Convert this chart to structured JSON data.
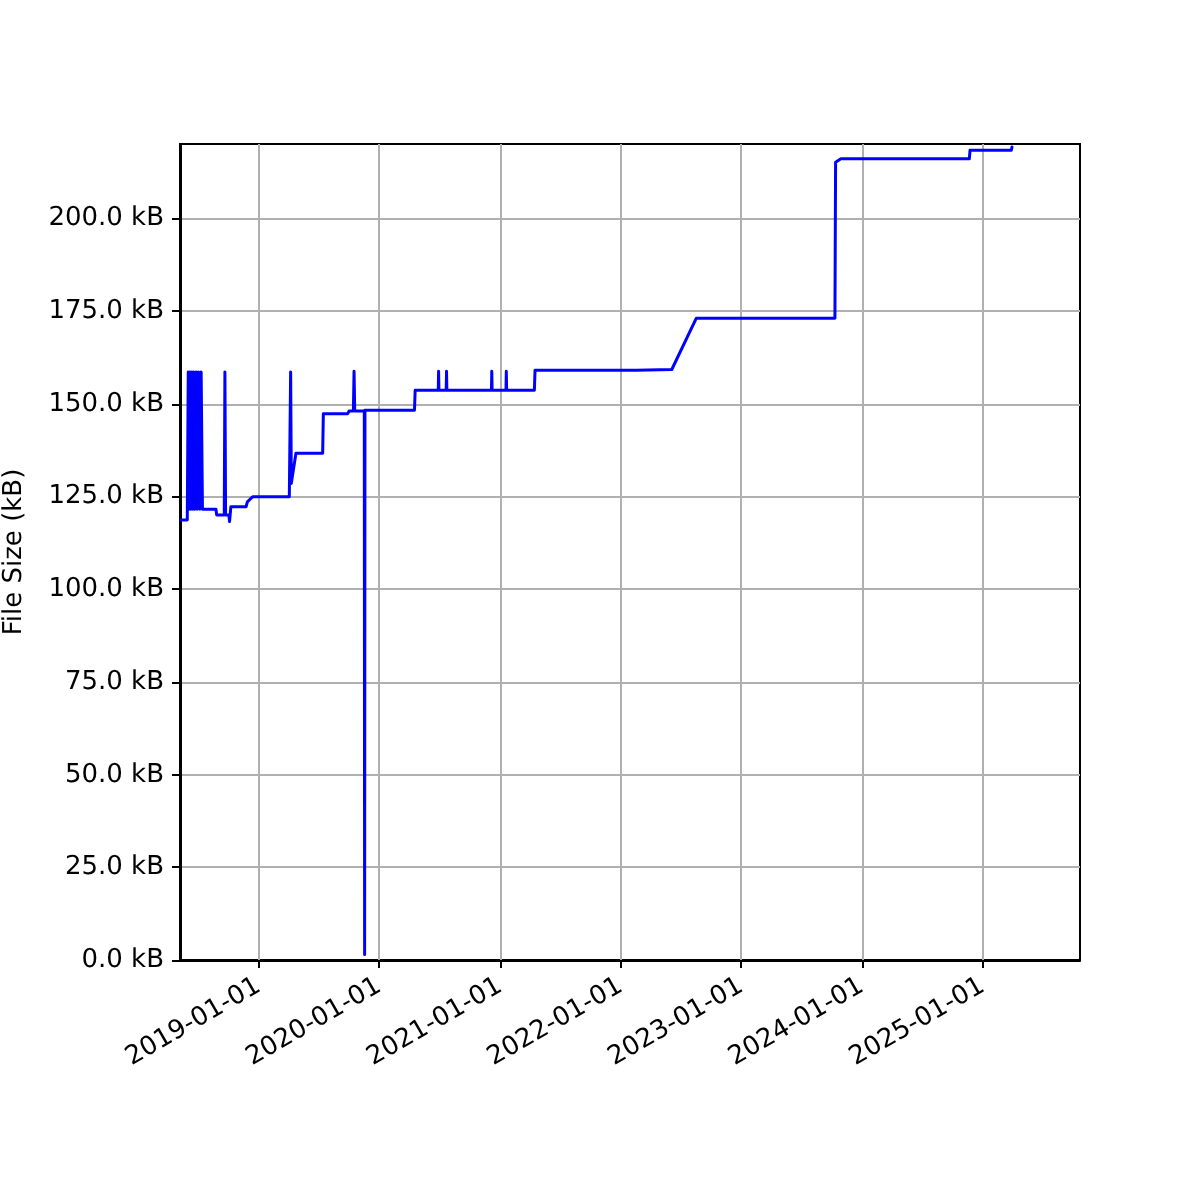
{
  "chart_data": {
    "type": "line",
    "ylabel": "File Size (kB)",
    "color": "#0000ff",
    "marker": "none",
    "line_style": "solid",
    "grid": true,
    "x": [
      "2018-05-11",
      "2018-05-30",
      "2018-06-02",
      "2018-06-04",
      "2018-06-07",
      "2018-06-10",
      "2018-06-13",
      "2018-06-16",
      "2018-06-19",
      "2018-06-22",
      "2018-06-26",
      "2018-06-29",
      "2018-07-03",
      "2018-07-07",
      "2018-07-11",
      "2018-07-15",
      "2018-08-25",
      "2018-08-27",
      "2018-09-19",
      "2018-09-21",
      "2018-09-23",
      "2018-10-03",
      "2018-10-05",
      "2018-10-09",
      "2018-11-24",
      "2018-11-28",
      "2018-12-14",
      "2019-04-04",
      "2019-04-08",
      "2019-04-10",
      "2019-04-13",
      "2019-04-24",
      "2019-07-14",
      "2019-07-16",
      "2019-09-28",
      "2019-10-02",
      "2019-10-15",
      "2019-10-17",
      "2019-10-19",
      "2019-11-17",
      "2019-11-18",
      "2019-11-19",
      "2020-04-17",
      "2020-04-19",
      "2020-06-28",
      "2020-06-29",
      "2020-06-30",
      "2020-07-22",
      "2020-07-23",
      "2020-07-24",
      "2020-12-06",
      "2020-12-07",
      "2020-12-08",
      "2021-01-19",
      "2021-01-20",
      "2021-01-21",
      "2021-04-15",
      "2021-04-17",
      "2022-02-17",
      "2022-02-19",
      "2022-06-05",
      "2022-08-18",
      "2023-10-12",
      "2023-10-14",
      "2023-10-30",
      "2024-11-22",
      "2024-11-24",
      "2025-03-29",
      "2025-03-31"
    ],
    "values": [
      118.6,
      118.6,
      158.5,
      121.5,
      158.5,
      121.5,
      158.5,
      121.5,
      158.5,
      121.5,
      158.5,
      121.5,
      158.5,
      121.5,
      158.5,
      121.5,
      121.5,
      120.0,
      120.0,
      158.5,
      120.0,
      120.0,
      118.2,
      122.2,
      122.2,
      123.5,
      124.9,
      124.9,
      158.5,
      128.5,
      128.5,
      136.6,
      136.6,
      147.3,
      147.3,
      148.0,
      148.0,
      158.7,
      148.0,
      148.0,
      1.5,
      148.2,
      148.2,
      153.6,
      153.6,
      158.7,
      153.6,
      153.6,
      158.7,
      153.6,
      153.6,
      158.7,
      153.6,
      153.6,
      158.7,
      153.6,
      153.6,
      159.0,
      159.0,
      159.2,
      159.2,
      173.0,
      173.0,
      215.1,
      216.0,
      216.0,
      218.3,
      218.3,
      219.2
    ],
    "xlim": [
      "2018-05-08",
      "2025-10-23"
    ],
    "xticks": [
      "2019-01-01",
      "2020-01-01",
      "2021-01-01",
      "2022-01-01",
      "2023-01-01",
      "2024-01-01",
      "2025-01-01"
    ],
    "ylim": [
      0,
      220
    ],
    "yticks": [
      {
        "value": 0,
        "label": "0.0 kB"
      },
      {
        "value": 25,
        "label": "25.0 kB"
      },
      {
        "value": 50,
        "label": "50.0 kB"
      },
      {
        "value": 75,
        "label": "75.0 kB"
      },
      {
        "value": 100,
        "label": "100.0 kB"
      },
      {
        "value": 125,
        "label": "125.0 kB"
      },
      {
        "value": 150,
        "label": "150.0 kB"
      },
      {
        "value": 175,
        "label": "175.0 kB"
      },
      {
        "value": 200,
        "label": "200.0 kB"
      }
    ]
  }
}
